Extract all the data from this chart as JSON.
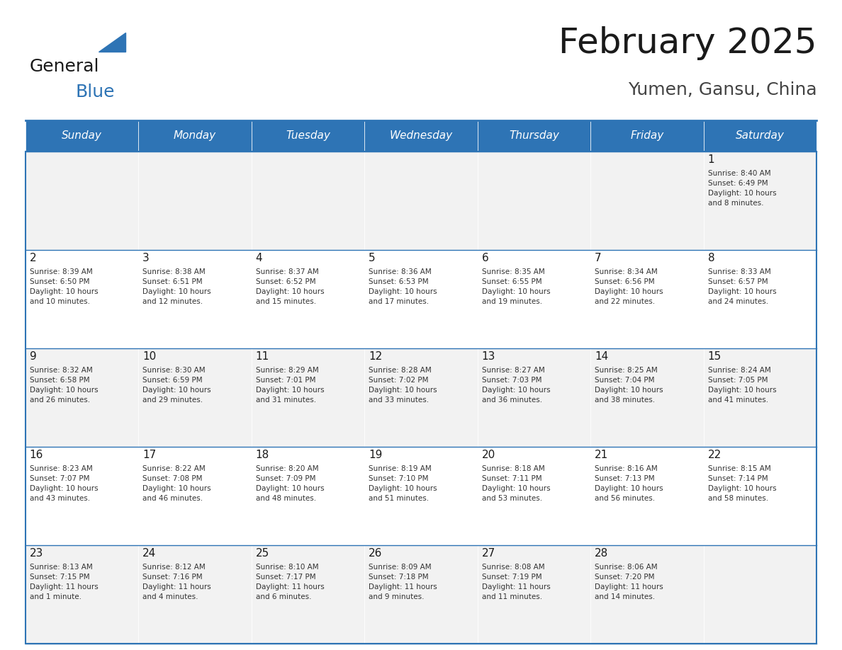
{
  "title": "February 2025",
  "subtitle": "Yumen, Gansu, China",
  "header_bg": "#2E74B5",
  "header_text_color": "#FFFFFF",
  "cell_bg_light": "#F2F2F2",
  "cell_bg_white": "#FFFFFF",
  "border_color": "#2E74B5",
  "text_color": "#333333",
  "day_headers": [
    "Sunday",
    "Monday",
    "Tuesday",
    "Wednesday",
    "Thursday",
    "Friday",
    "Saturday"
  ],
  "calendar": [
    [
      {
        "day": null,
        "info": null
      },
      {
        "day": null,
        "info": null
      },
      {
        "day": null,
        "info": null
      },
      {
        "day": null,
        "info": null
      },
      {
        "day": null,
        "info": null
      },
      {
        "day": null,
        "info": null
      },
      {
        "day": 1,
        "info": "Sunrise: 8:40 AM\nSunset: 6:49 PM\nDaylight: 10 hours\nand 8 minutes."
      }
    ],
    [
      {
        "day": 2,
        "info": "Sunrise: 8:39 AM\nSunset: 6:50 PM\nDaylight: 10 hours\nand 10 minutes."
      },
      {
        "day": 3,
        "info": "Sunrise: 8:38 AM\nSunset: 6:51 PM\nDaylight: 10 hours\nand 12 minutes."
      },
      {
        "day": 4,
        "info": "Sunrise: 8:37 AM\nSunset: 6:52 PM\nDaylight: 10 hours\nand 15 minutes."
      },
      {
        "day": 5,
        "info": "Sunrise: 8:36 AM\nSunset: 6:53 PM\nDaylight: 10 hours\nand 17 minutes."
      },
      {
        "day": 6,
        "info": "Sunrise: 8:35 AM\nSunset: 6:55 PM\nDaylight: 10 hours\nand 19 minutes."
      },
      {
        "day": 7,
        "info": "Sunrise: 8:34 AM\nSunset: 6:56 PM\nDaylight: 10 hours\nand 22 minutes."
      },
      {
        "day": 8,
        "info": "Sunrise: 8:33 AM\nSunset: 6:57 PM\nDaylight: 10 hours\nand 24 minutes."
      }
    ],
    [
      {
        "day": 9,
        "info": "Sunrise: 8:32 AM\nSunset: 6:58 PM\nDaylight: 10 hours\nand 26 minutes."
      },
      {
        "day": 10,
        "info": "Sunrise: 8:30 AM\nSunset: 6:59 PM\nDaylight: 10 hours\nand 29 minutes."
      },
      {
        "day": 11,
        "info": "Sunrise: 8:29 AM\nSunset: 7:01 PM\nDaylight: 10 hours\nand 31 minutes."
      },
      {
        "day": 12,
        "info": "Sunrise: 8:28 AM\nSunset: 7:02 PM\nDaylight: 10 hours\nand 33 minutes."
      },
      {
        "day": 13,
        "info": "Sunrise: 8:27 AM\nSunset: 7:03 PM\nDaylight: 10 hours\nand 36 minutes."
      },
      {
        "day": 14,
        "info": "Sunrise: 8:25 AM\nSunset: 7:04 PM\nDaylight: 10 hours\nand 38 minutes."
      },
      {
        "day": 15,
        "info": "Sunrise: 8:24 AM\nSunset: 7:05 PM\nDaylight: 10 hours\nand 41 minutes."
      }
    ],
    [
      {
        "day": 16,
        "info": "Sunrise: 8:23 AM\nSunset: 7:07 PM\nDaylight: 10 hours\nand 43 minutes."
      },
      {
        "day": 17,
        "info": "Sunrise: 8:22 AM\nSunset: 7:08 PM\nDaylight: 10 hours\nand 46 minutes."
      },
      {
        "day": 18,
        "info": "Sunrise: 8:20 AM\nSunset: 7:09 PM\nDaylight: 10 hours\nand 48 minutes."
      },
      {
        "day": 19,
        "info": "Sunrise: 8:19 AM\nSunset: 7:10 PM\nDaylight: 10 hours\nand 51 minutes."
      },
      {
        "day": 20,
        "info": "Sunrise: 8:18 AM\nSunset: 7:11 PM\nDaylight: 10 hours\nand 53 minutes."
      },
      {
        "day": 21,
        "info": "Sunrise: 8:16 AM\nSunset: 7:13 PM\nDaylight: 10 hours\nand 56 minutes."
      },
      {
        "day": 22,
        "info": "Sunrise: 8:15 AM\nSunset: 7:14 PM\nDaylight: 10 hours\nand 58 minutes."
      }
    ],
    [
      {
        "day": 23,
        "info": "Sunrise: 8:13 AM\nSunset: 7:15 PM\nDaylight: 11 hours\nand 1 minute."
      },
      {
        "day": 24,
        "info": "Sunrise: 8:12 AM\nSunset: 7:16 PM\nDaylight: 11 hours\nand 4 minutes."
      },
      {
        "day": 25,
        "info": "Sunrise: 8:10 AM\nSunset: 7:17 PM\nDaylight: 11 hours\nand 6 minutes."
      },
      {
        "day": 26,
        "info": "Sunrise: 8:09 AM\nSunset: 7:18 PM\nDaylight: 11 hours\nand 9 minutes."
      },
      {
        "day": 27,
        "info": "Sunrise: 8:08 AM\nSunset: 7:19 PM\nDaylight: 11 hours\nand 11 minutes."
      },
      {
        "day": 28,
        "info": "Sunrise: 8:06 AM\nSunset: 7:20 PM\nDaylight: 11 hours\nand 14 minutes."
      },
      {
        "day": null,
        "info": null
      }
    ]
  ],
  "logo_general_color": "#1A1A1A",
  "logo_blue_color": "#2E74B5",
  "figsize": [
    11.88,
    9.18
  ],
  "dpi": 100
}
